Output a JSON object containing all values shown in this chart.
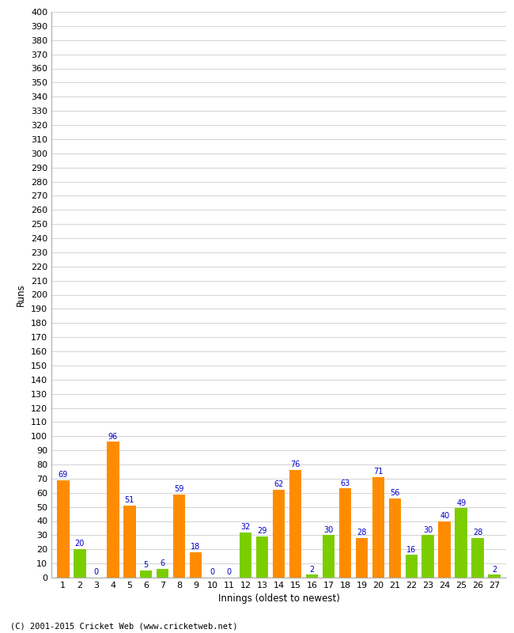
{
  "xlabel": "Innings (oldest to newest)",
  "ylabel": "Runs",
  "innings": [
    1,
    2,
    3,
    4,
    5,
    6,
    7,
    8,
    9,
    10,
    11,
    12,
    13,
    14,
    15,
    16,
    17,
    18,
    19,
    20,
    21,
    22,
    23,
    24,
    25,
    26,
    27
  ],
  "values": [
    69,
    20,
    0,
    96,
    51,
    5,
    6,
    59,
    18,
    0,
    0,
    32,
    29,
    62,
    76,
    2,
    30,
    63,
    28,
    71,
    56,
    16,
    30,
    40,
    49,
    28,
    2
  ],
  "colors": [
    "#FF8C00",
    "#7CCD00",
    "#7CCD00",
    "#FF8C00",
    "#FF8C00",
    "#7CCD00",
    "#7CCD00",
    "#FF8C00",
    "#FF8C00",
    "#7CCD00",
    "#7CCD00",
    "#7CCD00",
    "#7CCD00",
    "#FF8C00",
    "#FF8C00",
    "#7CCD00",
    "#7CCD00",
    "#FF8C00",
    "#FF8C00",
    "#FF8C00",
    "#FF8C00",
    "#7CCD00",
    "#7CCD00",
    "#FF8C00",
    "#7CCD00",
    "#7CCD00",
    "#7CCD00"
  ],
  "ylim": [
    0,
    400
  ],
  "yticks": [
    0,
    10,
    20,
    30,
    40,
    50,
    60,
    70,
    80,
    90,
    100,
    110,
    120,
    130,
    140,
    150,
    160,
    170,
    180,
    190,
    200,
    210,
    220,
    230,
    240,
    250,
    260,
    270,
    280,
    290,
    300,
    310,
    320,
    330,
    340,
    350,
    360,
    370,
    380,
    390,
    400
  ],
  "label_color": "#0000CC",
  "background_color": "#FFFFFF",
  "grid_color": "#CCCCCC",
  "footer": "(C) 2001-2015 Cricket Web (www.cricketweb.net)",
  "bar_width": 0.75
}
